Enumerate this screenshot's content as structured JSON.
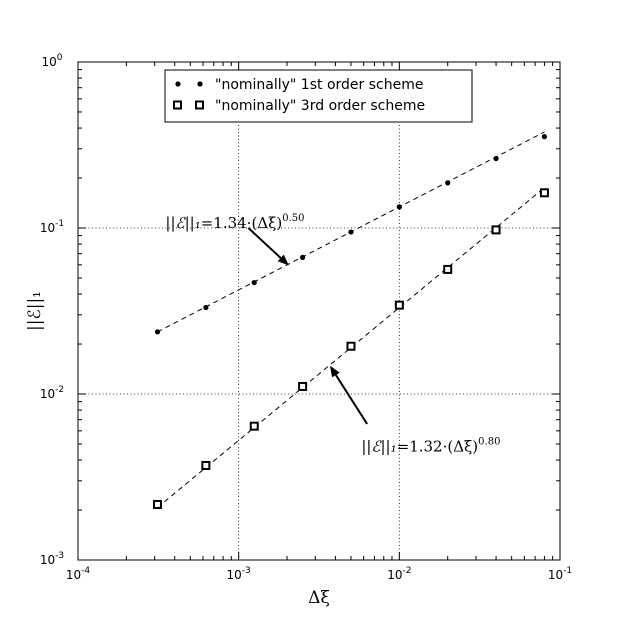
{
  "chart_data": {
    "type": "scatter",
    "title": "",
    "xlabel": "Δξ",
    "ylabel": "||ℰ||₁",
    "xscale": "log",
    "yscale": "log",
    "xlim": [
      0.0001,
      0.1
    ],
    "ylim": [
      0.001,
      1
    ],
    "grid": true,
    "legend_position": "top-center",
    "x_ticks": [
      {
        "value": 0.0001,
        "base": "10",
        "exp": "-4"
      },
      {
        "value": 0.001,
        "base": "10",
        "exp": "-3"
      },
      {
        "value": 0.01,
        "base": "10",
        "exp": "-2"
      },
      {
        "value": 0.1,
        "base": "10",
        "exp": "-1"
      }
    ],
    "y_ticks": [
      {
        "value": 0.001,
        "base": "10",
        "exp": "-3"
      },
      {
        "value": 0.01,
        "base": "10",
        "exp": "-2"
      },
      {
        "value": 0.1,
        "base": "10",
        "exp": "-1"
      },
      {
        "value": 1,
        "base": "10",
        "exp": "0"
      }
    ],
    "series": [
      {
        "name": "\"nominally\" 1st order scheme",
        "marker": "circle",
        "color": "#000000",
        "x": [
          0.0003125,
          0.000625,
          0.00125,
          0.0025,
          0.005,
          0.01,
          0.02,
          0.04,
          0.08
        ],
        "y": [
          0.0237,
          0.0332,
          0.0469,
          0.0665,
          0.0945,
          0.134,
          0.187,
          0.262,
          0.355
        ],
        "fit": {
          "coef": 1.34,
          "exponent": 0.5
        }
      },
      {
        "name": "\"nominally\" 3rd order scheme",
        "marker": "square",
        "color": "#000000",
        "x": [
          0.0003125,
          0.000625,
          0.00125,
          0.0025,
          0.005,
          0.01,
          0.02,
          0.04,
          0.08
        ],
        "y": [
          0.00216,
          0.00371,
          0.0064,
          0.0111,
          0.0194,
          0.0343,
          0.0563,
          0.0974,
          0.163
        ],
        "fit": {
          "coef": 1.32,
          "exponent": 0.8
        }
      }
    ],
    "annotations": [
      {
        "lhs": "||ℰ||₁",
        "eq": "=1.34·(Δξ)",
        "exp": "0.50",
        "text_at": [
          0.00035,
          0.1
        ],
        "arrow_to": [
          0.00205,
          0.0595
        ],
        "arrow_from": [
          0.00115,
          0.1
        ]
      },
      {
        "lhs": "||ℰ||₁",
        "eq": "=1.32·(Δξ)",
        "exp": "0.80",
        "text_at": [
          0.0058,
          0.0045
        ],
        "arrow_to": [
          0.0037,
          0.0148
        ],
        "arrow_from": [
          0.0063,
          0.0066
        ]
      }
    ]
  }
}
